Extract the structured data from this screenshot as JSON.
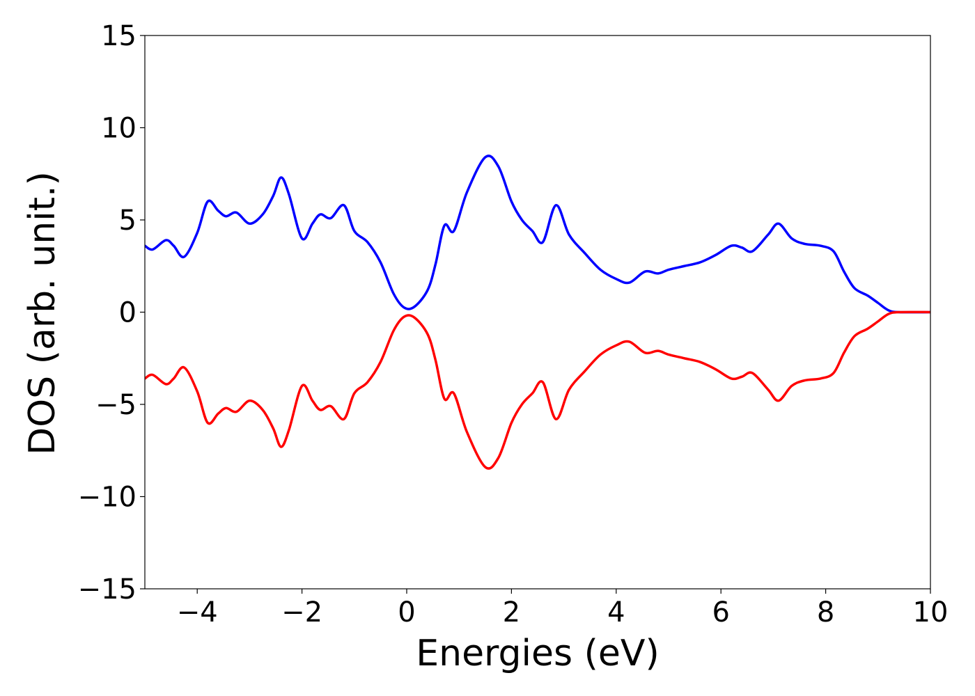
{
  "chart_data": {
    "type": "line",
    "title": "",
    "xlabel": "Energies (eV)",
    "ylabel": "DOS (arb. unit.)",
    "xlim": [
      -5,
      10
    ],
    "ylim": [
      -15,
      15
    ],
    "x_ticks": [
      -4,
      -2,
      0,
      2,
      4,
      6,
      8,
      10
    ],
    "x_tick_labels": [
      "−4",
      "−2",
      "0",
      "2",
      "4",
      "6",
      "8",
      "10"
    ],
    "y_ticks": [
      15,
      10,
      5,
      0,
      -5,
      -10,
      -15
    ],
    "y_tick_labels": [
      "15",
      "10",
      "5",
      "0",
      "−5",
      "−10",
      "−15"
    ],
    "grid": false,
    "legend": "none",
    "series": [
      {
        "color": "#0000ff",
        "points": [
          [
            -5.0,
            3.6
          ],
          [
            -4.85,
            3.4
          ],
          [
            -4.6,
            3.9
          ],
          [
            -4.45,
            3.6
          ],
          [
            -4.25,
            3.0
          ],
          [
            -4.0,
            4.3
          ],
          [
            -3.8,
            6.0
          ],
          [
            -3.6,
            5.5
          ],
          [
            -3.45,
            5.2
          ],
          [
            -3.25,
            5.4
          ],
          [
            -3.0,
            4.8
          ],
          [
            -2.75,
            5.3
          ],
          [
            -2.55,
            6.3
          ],
          [
            -2.4,
            7.3
          ],
          [
            -2.25,
            6.4
          ],
          [
            -2.0,
            4.0
          ],
          [
            -1.8,
            4.8
          ],
          [
            -1.65,
            5.3
          ],
          [
            -1.45,
            5.1
          ],
          [
            -1.2,
            5.8
          ],
          [
            -1.0,
            4.4
          ],
          [
            -0.75,
            3.8
          ],
          [
            -0.5,
            2.7
          ],
          [
            -0.25,
            1.0
          ],
          [
            -0.05,
            0.25
          ],
          [
            0.15,
            0.3
          ],
          [
            0.4,
            1.2
          ],
          [
            0.55,
            2.6
          ],
          [
            0.72,
            4.7
          ],
          [
            0.9,
            4.4
          ],
          [
            1.15,
            6.5
          ],
          [
            1.5,
            8.4
          ],
          [
            1.75,
            7.9
          ],
          [
            2.0,
            6.0
          ],
          [
            2.2,
            5.0
          ],
          [
            2.4,
            4.4
          ],
          [
            2.6,
            3.8
          ],
          [
            2.85,
            5.8
          ],
          [
            3.1,
            4.2
          ],
          [
            3.4,
            3.2
          ],
          [
            3.7,
            2.3
          ],
          [
            4.0,
            1.8
          ],
          [
            4.25,
            1.6
          ],
          [
            4.55,
            2.2
          ],
          [
            4.8,
            2.1
          ],
          [
            5.0,
            2.3
          ],
          [
            5.3,
            2.5
          ],
          [
            5.6,
            2.7
          ],
          [
            5.9,
            3.1
          ],
          [
            6.2,
            3.6
          ],
          [
            6.4,
            3.5
          ],
          [
            6.6,
            3.3
          ],
          [
            6.9,
            4.2
          ],
          [
            7.1,
            4.8
          ],
          [
            7.35,
            4.0
          ],
          [
            7.6,
            3.7
          ],
          [
            7.9,
            3.6
          ],
          [
            8.15,
            3.3
          ],
          [
            8.35,
            2.2
          ],
          [
            8.55,
            1.3
          ],
          [
            8.8,
            0.9
          ],
          [
            9.0,
            0.5
          ],
          [
            9.2,
            0.1
          ],
          [
            9.4,
            0.0
          ],
          [
            10.0,
            0.0
          ]
        ]
      },
      {
        "color": "#ff0000",
        "points": [
          [
            -5.0,
            -3.6
          ],
          [
            -4.85,
            -3.4
          ],
          [
            -4.6,
            -3.9
          ],
          [
            -4.45,
            -3.6
          ],
          [
            -4.25,
            -3.0
          ],
          [
            -4.0,
            -4.3
          ],
          [
            -3.8,
            -6.0
          ],
          [
            -3.6,
            -5.5
          ],
          [
            -3.45,
            -5.2
          ],
          [
            -3.25,
            -5.4
          ],
          [
            -3.0,
            -4.8
          ],
          [
            -2.75,
            -5.3
          ],
          [
            -2.55,
            -6.3
          ],
          [
            -2.4,
            -7.3
          ],
          [
            -2.25,
            -6.4
          ],
          [
            -2.0,
            -4.0
          ],
          [
            -1.8,
            -4.8
          ],
          [
            -1.65,
            -5.3
          ],
          [
            -1.45,
            -5.1
          ],
          [
            -1.2,
            -5.8
          ],
          [
            -1.0,
            -4.4
          ],
          [
            -0.75,
            -3.8
          ],
          [
            -0.5,
            -2.7
          ],
          [
            -0.25,
            -1.0
          ],
          [
            -0.05,
            -0.25
          ],
          [
            0.15,
            -0.3
          ],
          [
            0.4,
            -1.2
          ],
          [
            0.55,
            -2.6
          ],
          [
            0.72,
            -4.7
          ],
          [
            0.9,
            -4.4
          ],
          [
            1.15,
            -6.5
          ],
          [
            1.5,
            -8.4
          ],
          [
            1.75,
            -7.9
          ],
          [
            2.0,
            -6.0
          ],
          [
            2.2,
            -5.0
          ],
          [
            2.4,
            -4.4
          ],
          [
            2.6,
            -3.8
          ],
          [
            2.85,
            -5.8
          ],
          [
            3.1,
            -4.2
          ],
          [
            3.4,
            -3.2
          ],
          [
            3.7,
            -2.3
          ],
          [
            4.0,
            -1.8
          ],
          [
            4.25,
            -1.6
          ],
          [
            4.55,
            -2.2
          ],
          [
            4.8,
            -2.1
          ],
          [
            5.0,
            -2.3
          ],
          [
            5.3,
            -2.5
          ],
          [
            5.6,
            -2.7
          ],
          [
            5.9,
            -3.1
          ],
          [
            6.2,
            -3.6
          ],
          [
            6.4,
            -3.5
          ],
          [
            6.6,
            -3.3
          ],
          [
            6.9,
            -4.2
          ],
          [
            7.1,
            -4.8
          ],
          [
            7.35,
            -4.0
          ],
          [
            7.6,
            -3.7
          ],
          [
            7.9,
            -3.6
          ],
          [
            8.15,
            -3.3
          ],
          [
            8.35,
            -2.2
          ],
          [
            8.55,
            -1.3
          ],
          [
            8.8,
            -0.9
          ],
          [
            9.0,
            -0.5
          ],
          [
            9.2,
            -0.1
          ],
          [
            9.4,
            0.0
          ],
          [
            10.0,
            0.0
          ]
        ]
      }
    ]
  }
}
